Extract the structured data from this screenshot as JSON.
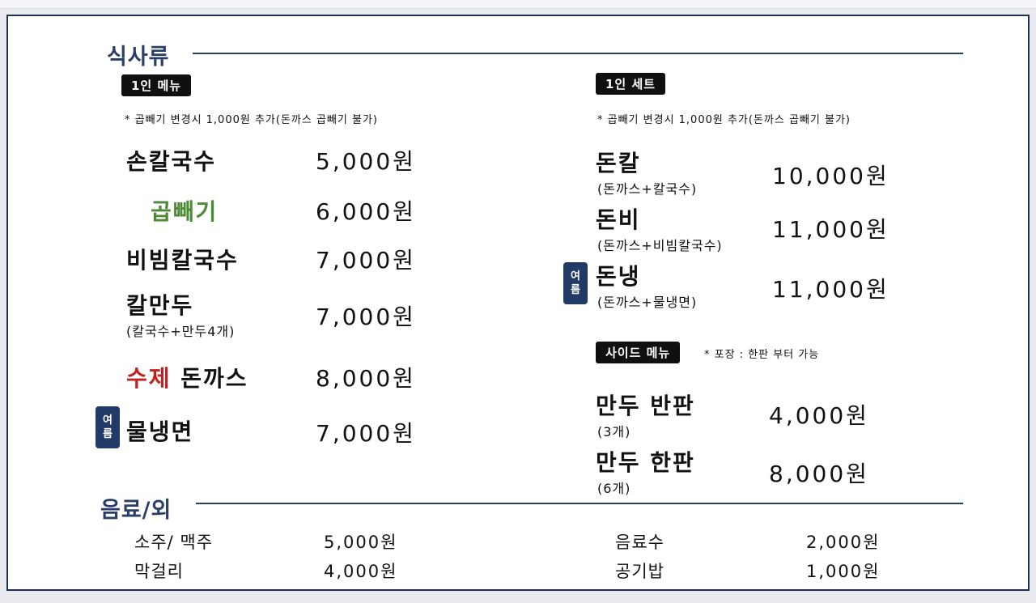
{
  "meal_section": {
    "title": "식사류",
    "single_menu": {
      "badge": "1인 메뉴",
      "note": "* 곱빼기  변경시 1,000원 추가(돈까스 곱빼기 불가)",
      "items": [
        {
          "name": "손칼국수",
          "price": "5,000원"
        },
        {
          "name": "곱빼기",
          "price": "6,000원"
        },
        {
          "name": "비빔칼국수",
          "price": "7,000원"
        },
        {
          "name": "칼만두",
          "sub": "(칼국수+만두4개)",
          "price": "7,000원"
        },
        {
          "name_highlight": "수제",
          "name": "돈까스",
          "price": "8,000원"
        },
        {
          "name": "물냉면",
          "price": "7,000원",
          "tag": [
            "여",
            "름"
          ]
        }
      ]
    },
    "single_set": {
      "badge": "1인 세트",
      "note": "* 곱빼기  변경시 1,000원 추가(돈까스 곱빼기 불가)",
      "items": [
        {
          "name": "돈칼",
          "sub": "(돈까스+칼국수)",
          "price": "10,000원"
        },
        {
          "name": "돈비",
          "sub": "(돈까스+비빔칼국수)",
          "price": "11,000원"
        },
        {
          "name": "돈냉",
          "sub": "(돈까스+물냉면)",
          "price": "11,000원",
          "tag": [
            "여",
            "름"
          ]
        }
      ]
    },
    "side_menu": {
      "badge": "사이드 메뉴",
      "note": "* 포장 : 한판 부터 가능",
      "items": [
        {
          "name": "만두 반판",
          "sub": "(3개)",
          "price": "4,000원"
        },
        {
          "name": "만두 한판",
          "sub": "(6개)",
          "price": "8,000원"
        }
      ]
    }
  },
  "drink_section": {
    "title": "음료/외",
    "items": [
      {
        "name": "소주/ 맥주",
        "price": "5,000원"
      },
      {
        "name": "막걸리",
        "price": "4,000원"
      },
      {
        "name": "음료수",
        "price": "2,000원"
      },
      {
        "name": "공기밥",
        "price": "1,000원"
      }
    ]
  },
  "colors": {
    "navy": "#2b3e6b",
    "tag_navy": "#223b66",
    "green": "#4d8a35",
    "red": "#c1221f"
  }
}
